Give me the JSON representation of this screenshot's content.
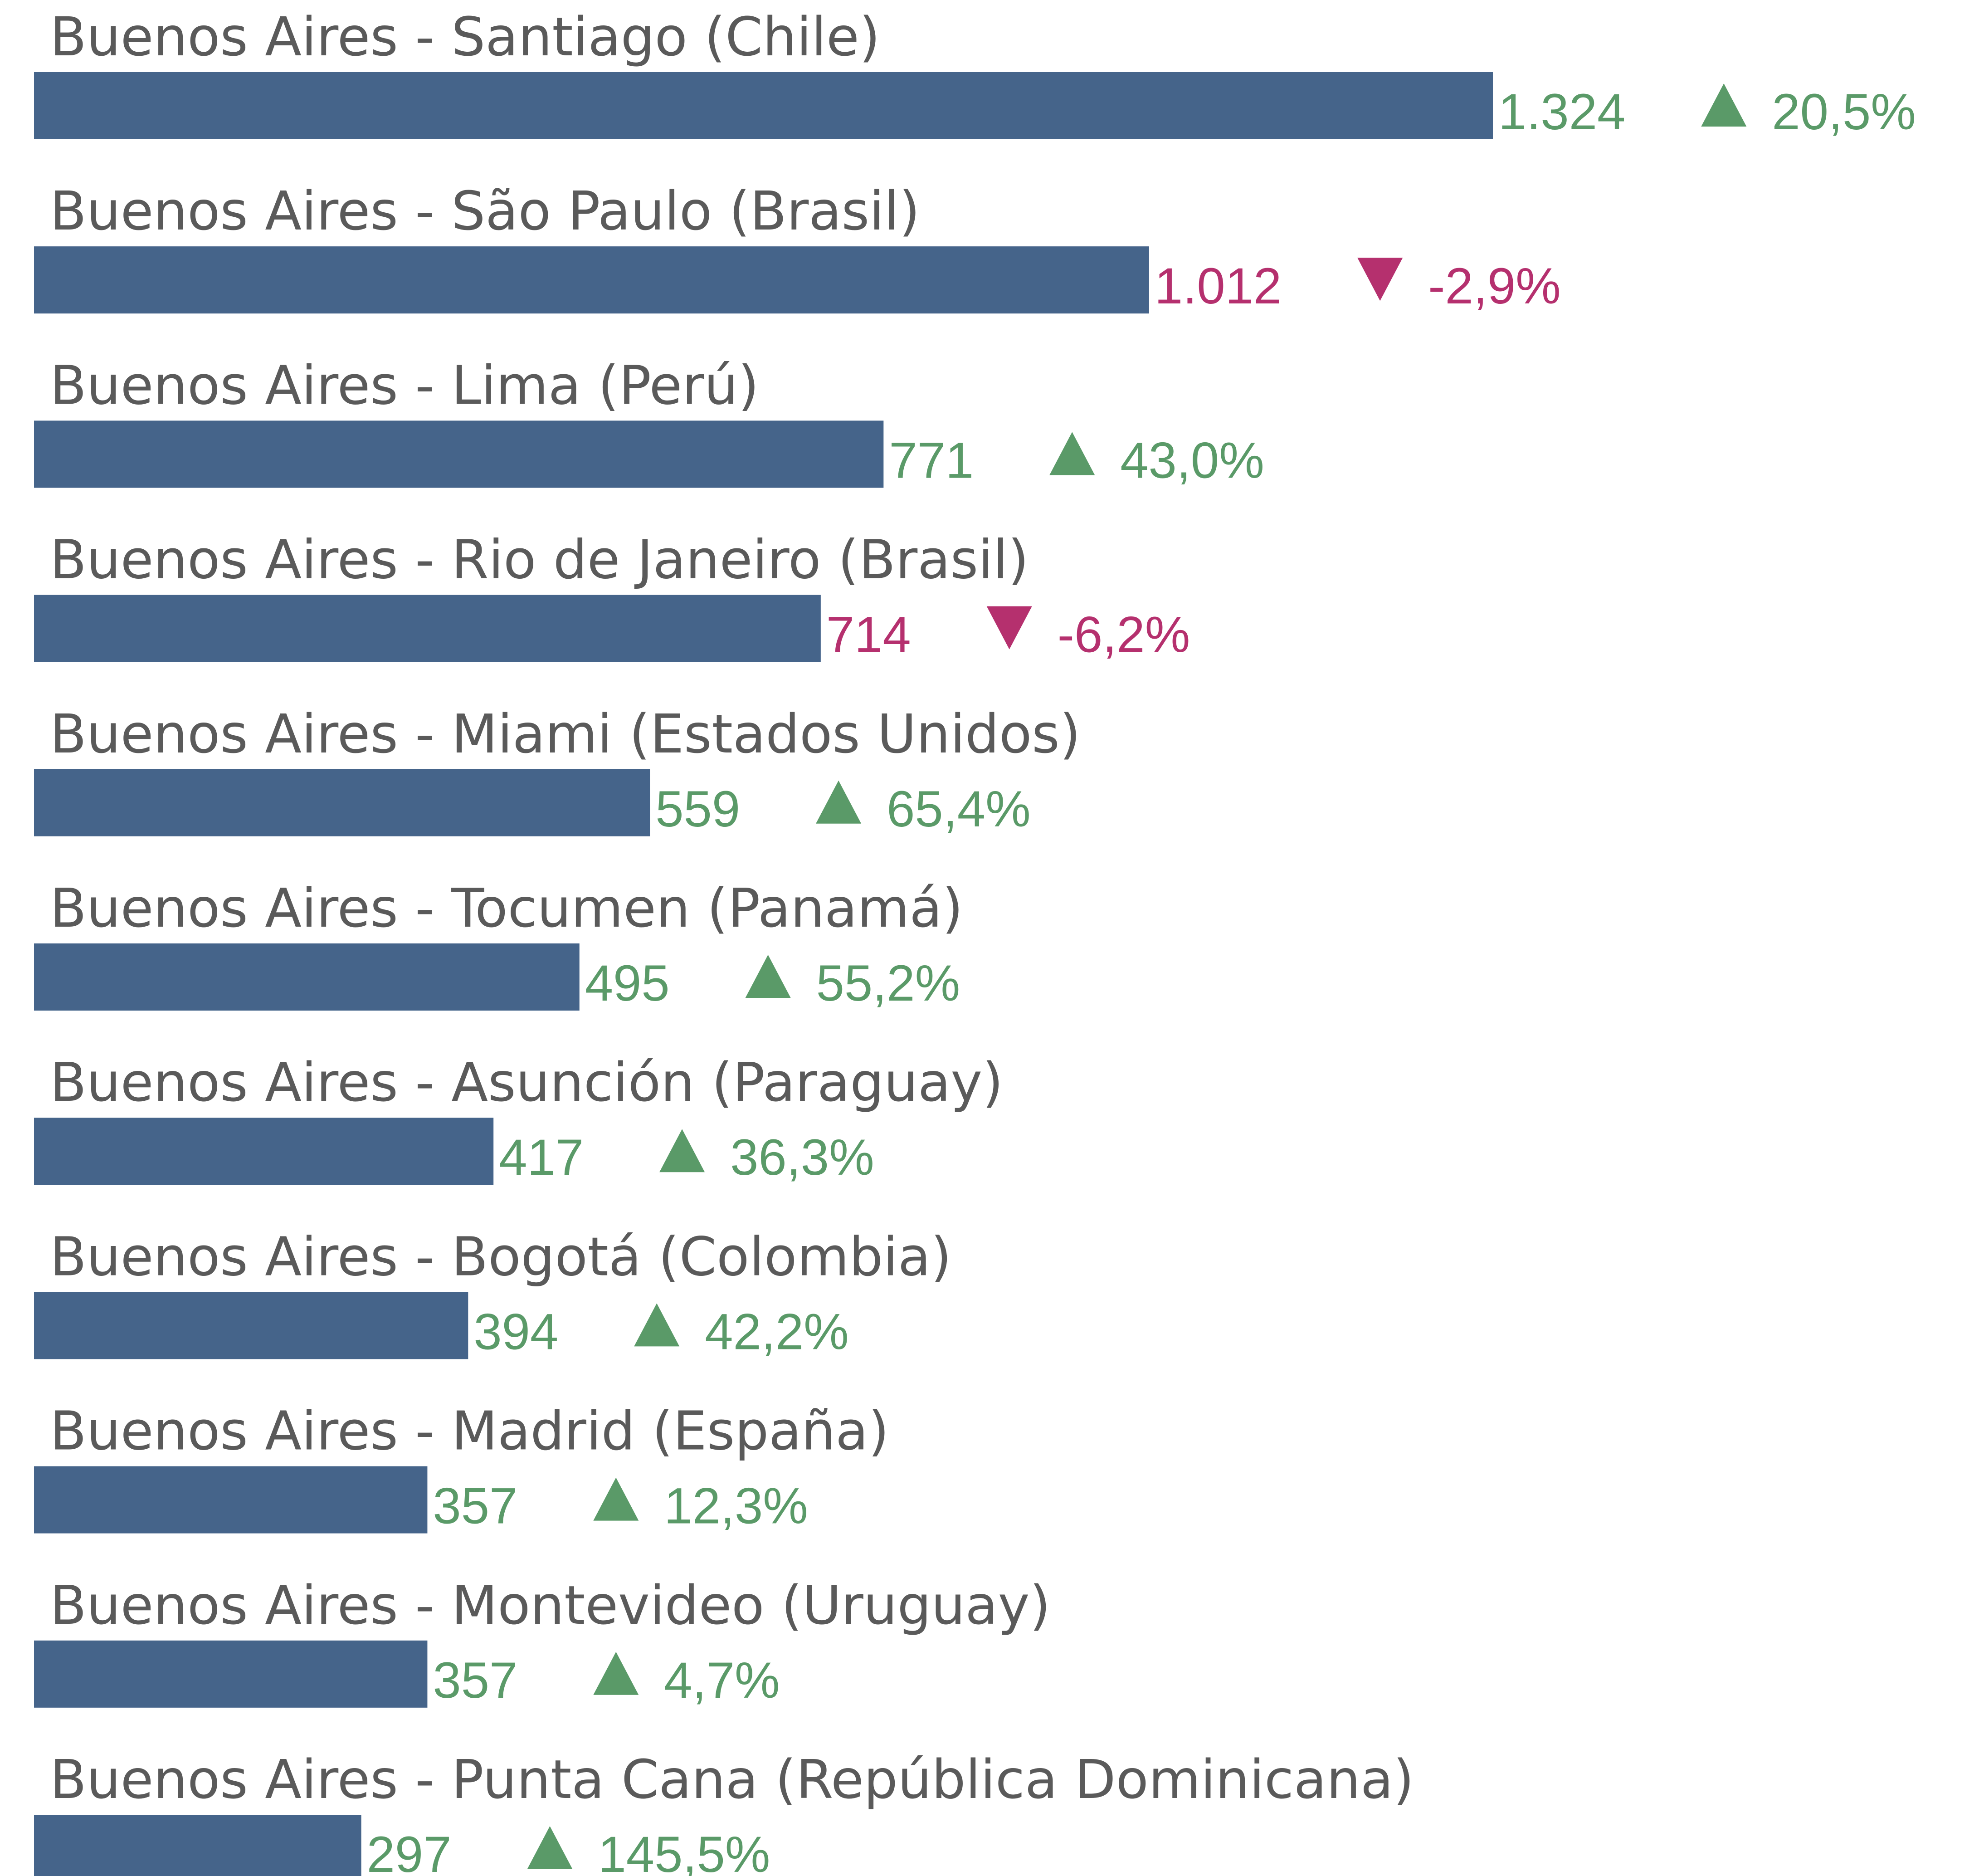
{
  "chart_data": {
    "type": "bar",
    "orientation": "horizontal",
    "color": "#45648a",
    "positive_color": "#5a9a68",
    "negative_color": "#b5306e",
    "categories": [
      "Buenos Aires - Santiago (Chile)",
      "Buenos Aires - São Paulo (Brasil)",
      "Buenos Aires - Lima (Perú)",
      "Buenos Aires - Rio de Janeiro (Brasil)",
      "Buenos Aires - Miami (Estados Unidos)",
      "Buenos Aires - Tocumen (Panamá)",
      "Buenos Aires - Asunción (Paraguay)",
      "Buenos Aires - Bogotá (Colombia)",
      "Buenos Aires - Madrid (España)",
      "Buenos Aires - Montevideo (Uruguay)",
      "Buenos Aires - Punta Cana (República Dominicana)"
    ],
    "values": [
      1324,
      1012,
      771,
      714,
      559,
      495,
      417,
      394,
      357,
      357,
      297
    ],
    "value_labels": [
      "1.324",
      "1.012",
      "771",
      "714",
      "559",
      "495",
      "417",
      "394",
      "357",
      "357",
      "297"
    ],
    "changes": [
      20.5,
      -2.9,
      43.0,
      -6.2,
      65.4,
      55.2,
      36.3,
      42.2,
      12.3,
      4.7,
      145.5
    ],
    "change_labels": [
      "20,5%",
      "-2,9%",
      "43,0%",
      "-6,2%",
      "65,4%",
      "55,2%",
      "36,3%",
      "42,2%",
      "12,3%",
      "4,7%",
      "145,5%"
    ],
    "xlim": [
      0,
      1324
    ]
  }
}
